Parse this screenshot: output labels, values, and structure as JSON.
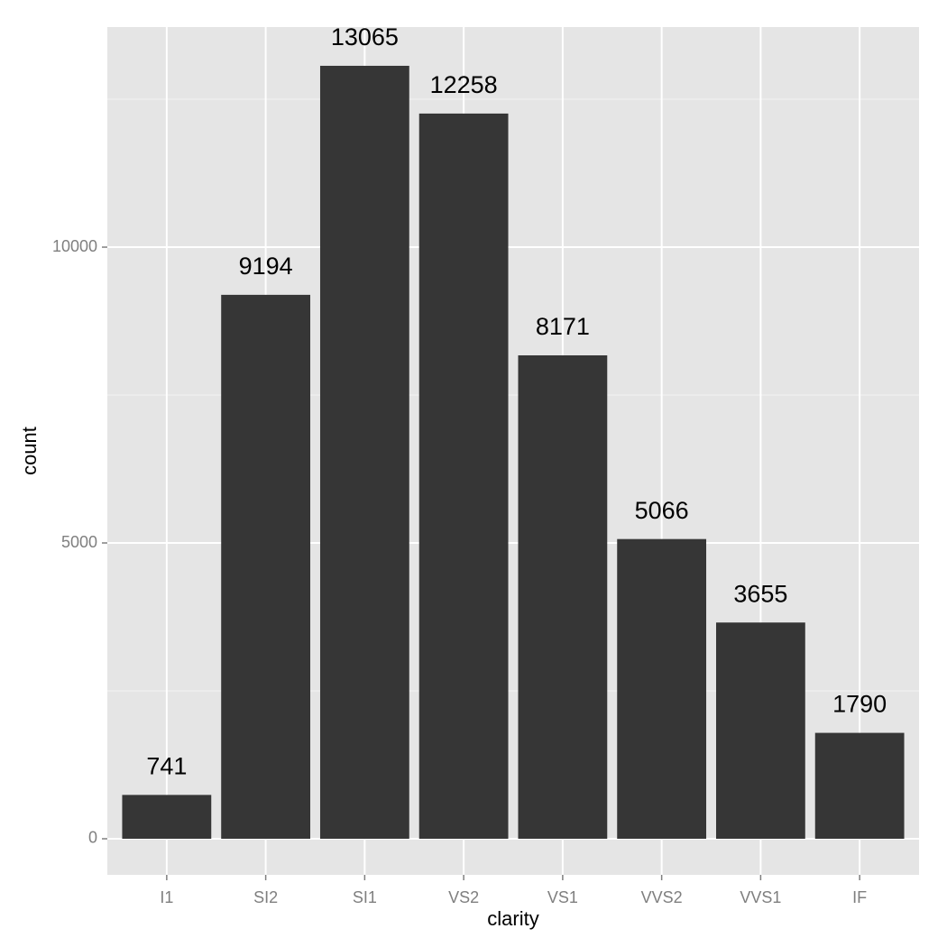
{
  "chart_data": {
    "type": "bar",
    "x_label": "clarity",
    "y_label": "count",
    "categories": [
      "I1",
      "SI2",
      "SI1",
      "VS2",
      "VS1",
      "VVS2",
      "VVS1",
      "IF"
    ],
    "values": [
      741,
      9194,
      13065,
      12258,
      8171,
      5066,
      3655,
      1790
    ],
    "color": "#363636",
    "ylim": [
      -610,
      13720
    ],
    "yticks": [
      0,
      5000,
      10000
    ],
    "grid": true
  }
}
